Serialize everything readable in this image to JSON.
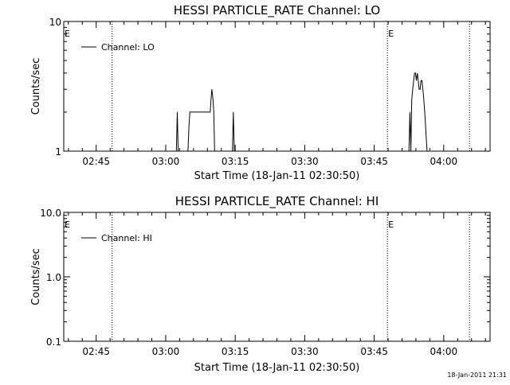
{
  "footer": "18-Jan-2011 21:31",
  "chart_data": [
    {
      "type": "line",
      "title": "HESSI PARTICLE_RATE Channel: LO",
      "xlabel": "Start Time (18-Jan-11 02:30:50)",
      "ylabel": "Counts/sec",
      "x_unit": "minutes",
      "xlim": [
        2.6333,
        4.1667
      ],
      "x_ticks": [
        {
          "label": "02:45",
          "value": 2.75
        },
        {
          "label": "03:00",
          "value": 3.0
        },
        {
          "label": "03:15",
          "value": 3.25
        },
        {
          "label": "03:30",
          "value": 3.5
        },
        {
          "label": "03:45",
          "value": 3.75
        },
        {
          "label": "04:00",
          "value": 4.0
        }
      ],
      "y_scale": "log",
      "ylim": [
        1,
        10
      ],
      "y_ticks": [
        {
          "label": "1",
          "value": 1
        },
        {
          "label": "10",
          "value": 10
        }
      ],
      "legend_position": "top-left",
      "series": [
        {
          "name": "Channel: LO",
          "x": [
            2.6333,
            3.0383,
            3.0417,
            3.045,
            3.0483,
            3.08,
            3.0833,
            3.0867,
            3.0917,
            3.16,
            3.163,
            3.166,
            3.17,
            3.173,
            3.176,
            3.18,
            3.1833,
            3.24,
            3.2433,
            3.2467,
            3.25,
            3.875,
            3.8783,
            3.8817,
            3.885,
            3.8883,
            3.8917,
            3.895,
            3.8983,
            3.9017,
            3.905,
            3.9083,
            3.9117,
            3.915,
            3.9183,
            3.9217,
            3.925,
            3.9283,
            3.9317,
            3.935,
            3.94,
            3.9467,
            3.9533,
            4.1667
          ],
          "y": [
            1,
            1,
            2,
            1,
            1,
            1,
            1.5,
            2,
            2,
            2,
            2.5,
            3,
            2.5,
            2,
            1,
            1,
            1,
            1,
            2,
            1,
            1,
            1,
            2,
            1,
            2.5,
            3,
            3.5,
            4,
            4,
            3.5,
            4,
            3.5,
            3,
            3,
            3.5,
            3.5,
            3,
            2.5,
            2,
            1.5,
            1,
            1,
            1,
            1
          ]
        }
      ],
      "markers": [
        {
          "label": "E",
          "x": 2.6333,
          "dotted": false
        },
        {
          "label": "",
          "x": 2.8072,
          "dotted": true
        },
        {
          "label": "E",
          "x": 3.7975,
          "dotted": true
        },
        {
          "label": "",
          "x": 4.0928,
          "dotted": true
        }
      ]
    },
    {
      "type": "line",
      "title": "HESSI PARTICLE_RATE Channel: HI",
      "xlabel": "Start Time (18-Jan-11 02:30:50)",
      "ylabel": "Counts/sec",
      "x_unit": "minutes",
      "xlim": [
        2.6333,
        4.1667
      ],
      "x_ticks": [
        {
          "label": "02:45",
          "value": 2.75
        },
        {
          "label": "03:00",
          "value": 3.0
        },
        {
          "label": "03:15",
          "value": 3.25
        },
        {
          "label": "03:30",
          "value": 3.5
        },
        {
          "label": "03:45",
          "value": 3.75
        },
        {
          "label": "04:00",
          "value": 4.0
        }
      ],
      "y_scale": "log",
      "ylim": [
        0.1,
        10
      ],
      "y_ticks": [
        {
          "label": "0.1",
          "value": 0.1
        },
        {
          "label": "1.0",
          "value": 1
        },
        {
          "label": "10.0",
          "value": 10
        }
      ],
      "legend_position": "top-left",
      "series": [
        {
          "name": "Channel: HI",
          "x": [],
          "y": []
        }
      ],
      "markers": [
        {
          "label": "E",
          "x": 2.6333,
          "dotted": false
        },
        {
          "label": "",
          "x": 2.8072,
          "dotted": true
        },
        {
          "label": "E",
          "x": 3.7975,
          "dotted": true
        },
        {
          "label": "",
          "x": 4.0928,
          "dotted": true
        }
      ]
    }
  ]
}
